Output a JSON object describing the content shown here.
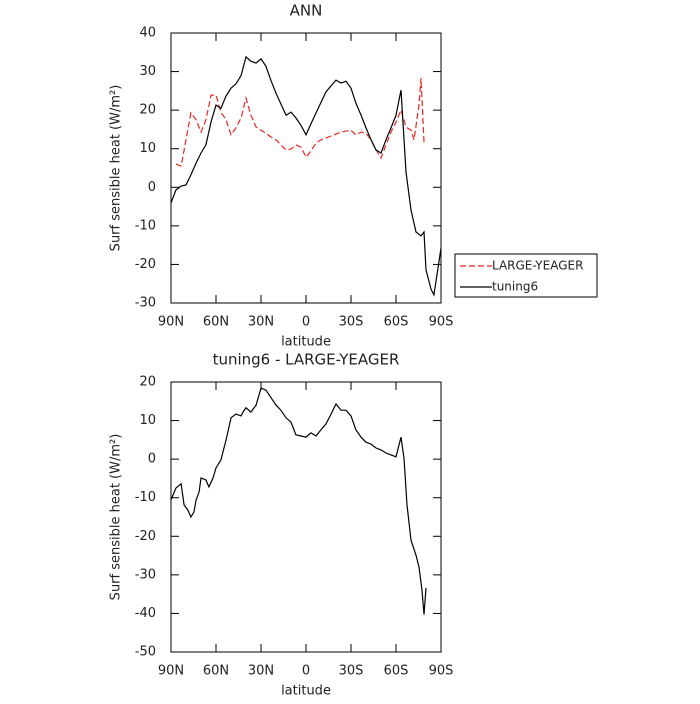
{
  "chart_data": [
    {
      "type": "line",
      "title": "ANN",
      "x_label": "latitude",
      "y_label": "Surf sensible heat (W/m²)",
      "xlim": [
        90,
        -90
      ],
      "xticks": [
        {
          "value": 90,
          "label": "90N"
        },
        {
          "value": 60,
          "label": "60N"
        },
        {
          "value": 30,
          "label": "30N"
        },
        0,
        {
          "value": -30,
          "label": "30S"
        },
        {
          "value": -60,
          "label": "60S"
        },
        {
          "value": -90,
          "label": "90S"
        }
      ],
      "ylim": [
        -30,
        40
      ],
      "yticks": [
        -30,
        -20,
        -10,
        0,
        10,
        20,
        30,
        40
      ],
      "legend": "right",
      "series": [
        {
          "name": "LARGE-YEAGER",
          "color": "#e8261f",
          "dashed": true,
          "x": [
            86.7,
            83.3,
            80,
            76.7,
            73.3,
            70,
            66.7,
            63.3,
            60,
            56.7,
            53.3,
            50,
            46.7,
            43.3,
            40,
            36.7,
            33.3,
            30,
            26.7,
            23.3,
            20,
            16.7,
            13.3,
            10,
            6.7,
            3.3,
            0,
            -3.3,
            -6.7,
            -10,
            -16.7,
            -23.3,
            -30,
            -33.3,
            -36.7,
            -40,
            -43.3,
            -46.7,
            -50,
            -53.3,
            -56.7,
            -60,
            -63.3,
            -66.7,
            -70,
            -72,
            -75.3,
            -76.7,
            -78.7
          ],
          "values": [
            6,
            5.5,
            12.3,
            19.3,
            17.5,
            14.3,
            17.5,
            23.9,
            23.9,
            19.5,
            17.5,
            13.6,
            15.4,
            18,
            23.1,
            18.7,
            15.6,
            14.8,
            14,
            13,
            12.3,
            11,
            9.7,
            9.9,
            11,
            10.4,
            7.8,
            9.4,
            11.5,
            12.3,
            13.3,
            14.3,
            14.8,
            13.6,
            14.3,
            14,
            12.3,
            9.7,
            7.6,
            11,
            14.3,
            16.9,
            20,
            15.6,
            14.8,
            12.3,
            21.3,
            28.3,
            11.7
          ]
        },
        {
          "name": "tuning6",
          "color": "#000000",
          "dashed": false,
          "x": [
            90,
            86.7,
            83.3,
            80,
            76.7,
            73.3,
            70,
            66.7,
            63.3,
            60,
            56.7,
            53.3,
            50,
            46.7,
            43.3,
            40,
            36.7,
            33.3,
            30,
            26.7,
            23.3,
            20,
            16.7,
            13.3,
            10,
            6.7,
            3.3,
            0,
            -3.3,
            -6.7,
            -10,
            -13.3,
            -16.7,
            -20,
            -23.3,
            -26.7,
            -30,
            -33.3,
            -36.7,
            -40,
            -43.3,
            -46.7,
            -50,
            -53.3,
            -56.7,
            -60,
            -63.3,
            -66.7,
            -70,
            -73.3,
            -76.7,
            -78.7,
            -80,
            -83.3,
            -85.3,
            -88,
            -90
          ],
          "values": [
            -4.1,
            -0.7,
            0.3,
            0.6,
            3.2,
            6.3,
            8.9,
            11,
            17,
            21.3,
            20.5,
            23.7,
            25.7,
            26.8,
            29,
            33.8,
            32.7,
            32.2,
            33.3,
            31.4,
            27.6,
            24.4,
            21.6,
            18.7,
            19.5,
            18,
            16,
            13.6,
            16.4,
            19.3,
            22,
            24.7,
            26.3,
            27.8,
            27,
            27.5,
            25.7,
            21.8,
            18.7,
            15.4,
            12.3,
            9.7,
            8.9,
            12.3,
            15.4,
            18.7,
            25.2,
            4,
            -5.9,
            -11.6,
            -12.6,
            -11.6,
            -21.4,
            -26.4,
            -27.9,
            -21,
            -15.7
          ]
        }
      ]
    },
    {
      "type": "line",
      "title": "tuning6 - LARGE-YEAGER",
      "x_label": "latitude",
      "y_label": "Surf sensible heat (W/m²)",
      "xlim": [
        90,
        -90
      ],
      "xticks": [
        {
          "value": 90,
          "label": "90N"
        },
        {
          "value": 60,
          "label": "60N"
        },
        {
          "value": 30,
          "label": "30N"
        },
        0,
        {
          "value": -30,
          "label": "30S"
        },
        {
          "value": -60,
          "label": "60S"
        },
        {
          "value": -90,
          "label": "90S"
        }
      ],
      "ylim": [
        -50,
        20
      ],
      "yticks": [
        -50,
        -40,
        -30,
        -20,
        -10,
        0,
        10,
        20
      ],
      "series": [
        {
          "color": "#000000",
          "dashed": false,
          "x": [
            90,
            86.7,
            83.3,
            81.3,
            78.7,
            76.7,
            74.7,
            73.3,
            71.3,
            70,
            66.7,
            64.7,
            62,
            60,
            56.7,
            53.3,
            50,
            46.7,
            43.3,
            42,
            40,
            36.7,
            33.3,
            30,
            26.7,
            23.3,
            20,
            16.7,
            13.3,
            10,
            6.7,
            3.3,
            0,
            -3.3,
            -6.7,
            -10,
            -13.3,
            -16.7,
            -20,
            -23.3,
            -26.7,
            -30,
            -33.3,
            -36.7,
            -40,
            -43.3,
            -46.7,
            -50,
            -53.3,
            -56.7,
            -60,
            -63.3,
            -65.3,
            -67.3,
            -70,
            -73.3,
            -75.3,
            -77.3,
            -78.7,
            -80
          ],
          "values": [
            -10.6,
            -7.5,
            -6.4,
            -11.9,
            -13.2,
            -15,
            -13.7,
            -10.6,
            -8.5,
            -4.9,
            -5.4,
            -7.2,
            -4.9,
            -2.3,
            -0.2,
            5,
            10.7,
            11.7,
            11.2,
            12.2,
            13.3,
            12.2,
            14,
            18.4,
            17.9,
            15.9,
            14,
            12.7,
            10.7,
            9.6,
            6.3,
            6,
            5.7,
            6.8,
            6,
            7.6,
            9.1,
            11.7,
            14.3,
            12.7,
            12.7,
            11.2,
            7.6,
            5.7,
            4.4,
            3.9,
            2.9,
            2.4,
            1.6,
            1.1,
            0.6,
            5.7,
            0.3,
            -11.9,
            -21,
            -24.9,
            -28,
            -34,
            -40.3,
            -33.4
          ]
        }
      ]
    }
  ]
}
